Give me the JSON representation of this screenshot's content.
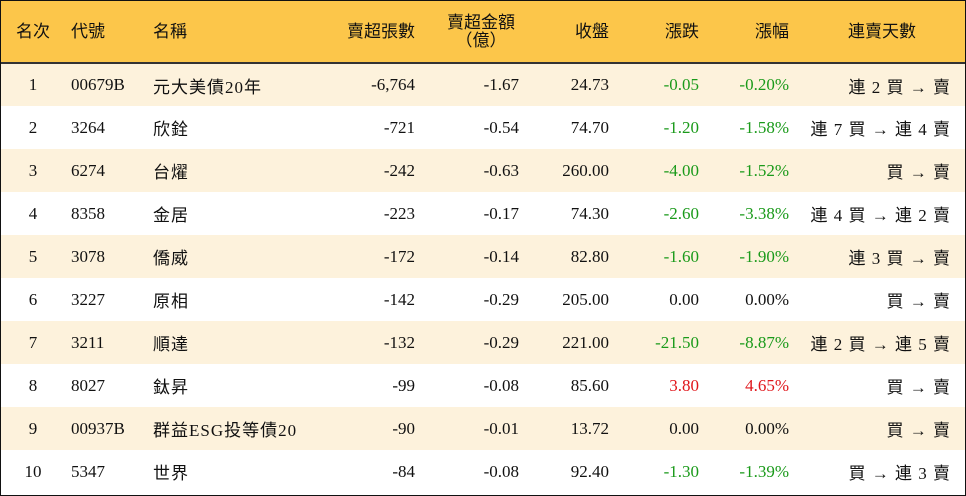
{
  "headers": {
    "rank": "名次",
    "code": "代號",
    "name": "名稱",
    "net_sell_shares": "賣超張數",
    "net_sell_amount_line1": "賣超金額",
    "net_sell_amount_line2": "（億）",
    "close": "收盤",
    "change": "漲跌",
    "change_pct": "漲幅",
    "consecutive_days": "連賣天數"
  },
  "colors": {
    "header_bg": "#fcc64a",
    "stripe_bg": "#fdf2dc",
    "down": "#1a9a1a",
    "up": "#e0161b"
  },
  "rows": [
    {
      "rank": "1",
      "code": "00679B",
      "name": "元大美債20年",
      "shares": "-6,764",
      "amount": "-1.67",
      "close": "24.73",
      "change": "-0.05",
      "pct": "-0.20%",
      "trend": "down",
      "days": "連 2 買 → 賣"
    },
    {
      "rank": "2",
      "code": "3264",
      "name": "欣銓",
      "shares": "-721",
      "amount": "-0.54",
      "close": "74.70",
      "change": "-1.20",
      "pct": "-1.58%",
      "trend": "down",
      "days": "連 7 買 → 連 4 賣"
    },
    {
      "rank": "3",
      "code": "6274",
      "name": "台燿",
      "shares": "-242",
      "amount": "-0.63",
      "close": "260.00",
      "change": "-4.00",
      "pct": "-1.52%",
      "trend": "down",
      "days": "買 → 賣"
    },
    {
      "rank": "4",
      "code": "8358",
      "name": "金居",
      "shares": "-223",
      "amount": "-0.17",
      "close": "74.30",
      "change": "-2.60",
      "pct": "-3.38%",
      "trend": "down",
      "days": "連 4 買 → 連 2 賣"
    },
    {
      "rank": "5",
      "code": "3078",
      "name": "僑威",
      "shares": "-172",
      "amount": "-0.14",
      "close": "82.80",
      "change": "-1.60",
      "pct": "-1.90%",
      "trend": "down",
      "days": "連 3 買 → 賣"
    },
    {
      "rank": "6",
      "code": "3227",
      "name": "原相",
      "shares": "-142",
      "amount": "-0.29",
      "close": "205.00",
      "change": "0.00",
      "pct": "0.00%",
      "trend": "flat",
      "days": "買 → 賣"
    },
    {
      "rank": "7",
      "code": "3211",
      "name": "順達",
      "shares": "-132",
      "amount": "-0.29",
      "close": "221.00",
      "change": "-21.50",
      "pct": "-8.87%",
      "trend": "down",
      "days": "連 2 買 → 連 5 賣"
    },
    {
      "rank": "8",
      "code": "8027",
      "name": "鈦昇",
      "shares": "-99",
      "amount": "-0.08",
      "close": "85.60",
      "change": "3.80",
      "pct": "4.65%",
      "trend": "up",
      "days": "買 → 賣"
    },
    {
      "rank": "9",
      "code": "00937B",
      "name": "群益ESG投等債20",
      "shares": "-90",
      "amount": "-0.01",
      "close": "13.72",
      "change": "0.00",
      "pct": "0.00%",
      "trend": "flat",
      "days": "買 → 賣"
    },
    {
      "rank": "10",
      "code": "5347",
      "name": "世界",
      "shares": "-84",
      "amount": "-0.08",
      "close": "92.40",
      "change": "-1.30",
      "pct": "-1.39%",
      "trend": "down",
      "days": "買 → 連 3 賣"
    }
  ]
}
